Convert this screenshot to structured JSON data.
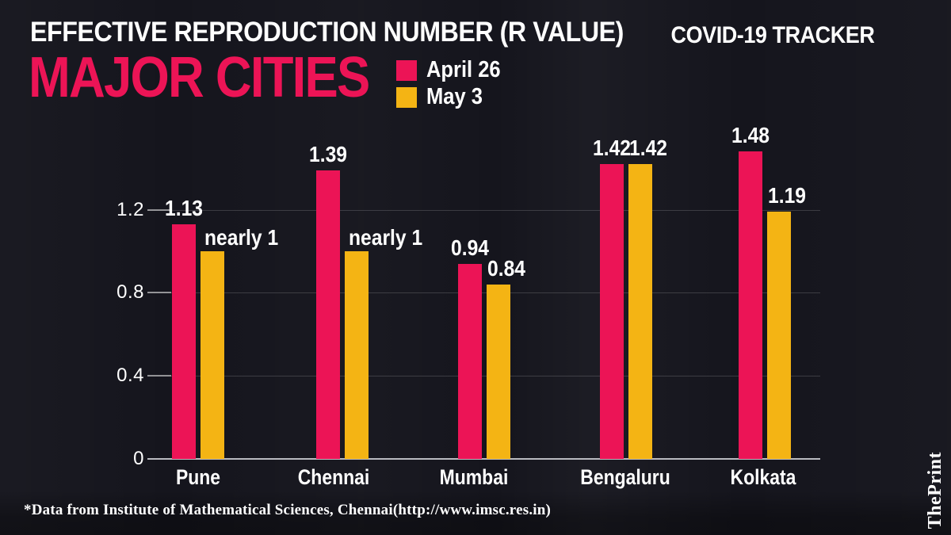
{
  "header": {
    "title": "EFFECTIVE REPRODUCTION NUMBER (R VALUE)",
    "subtitle": "MAJOR CITIES",
    "tracker_label": "COVID-19 TRACKER"
  },
  "colors": {
    "pink": "#EC1456",
    "yellow": "#F4B414",
    "background": "#15151D",
    "text": "#FFFFFF"
  },
  "chart_data": {
    "type": "bar",
    "title": "EFFECTIVE REPRODUCTION NUMBER (R VALUE) — MAJOR CITIES",
    "categories": [
      "Pune",
      "Chennai",
      "Mumbai",
      "Bengaluru",
      "Kolkata"
    ],
    "series": [
      {
        "name": "April 26",
        "color": "#EC1456",
        "values": [
          1.13,
          1.39,
          0.94,
          1.42,
          1.48
        ],
        "data_labels": [
          "1.13",
          "1.39",
          "0.94",
          "1.42",
          "1.48"
        ],
        "label_placement": [
          "above",
          "above",
          "above",
          "above",
          "above"
        ]
      },
      {
        "name": "May 3",
        "color": "#F4B414",
        "values": [
          1.0,
          1.0,
          0.84,
          1.42,
          1.19
        ],
        "data_labels": [
          "nearly 1",
          "nearly 1",
          "0.84",
          "1.42",
          "1.19"
        ],
        "label_placement": [
          "side",
          "side",
          "above",
          "above",
          "above"
        ]
      }
    ],
    "ytick_labels": [
      "0",
      "0.4",
      "0.8",
      "1.2"
    ],
    "ytick_values": [
      0,
      0.4,
      0.8,
      1.2
    ],
    "ylim": [
      0,
      1.5
    ],
    "grid": true,
    "legend_position": "top"
  },
  "footer": {
    "source": "*Data from Institute of Mathematical Sciences, Chennai(http://www.imsc.res.in)",
    "brand": "ThePrint"
  }
}
